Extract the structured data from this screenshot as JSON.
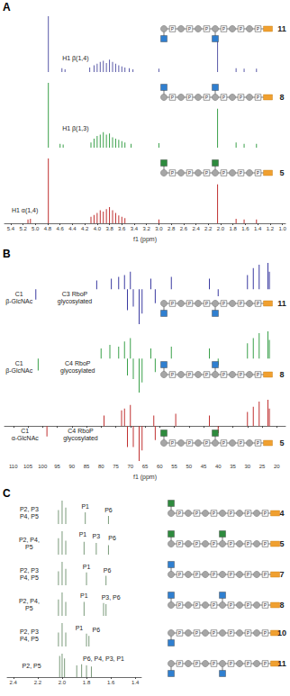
{
  "chart_data": [
    {
      "type": "bar",
      "title": "A",
      "x_label": "f1 (ppm)",
      "grid": false,
      "tick_labels": "x",
      "xlim": [
        0.95,
        5.5
      ],
      "xticks": [
        5.4,
        5.2,
        {
          "value": 5,
          "label": "5.0"
        },
        4.8,
        4.6,
        4.4,
        4.2,
        {
          "value": 4,
          "label": "4.0"
        },
        3.8,
        3.6,
        3.4,
        3.2,
        {
          "value": 3,
          "label": "3.0"
        },
        2.8,
        2.6,
        2.4,
        2.2,
        {
          "value": 2,
          "label": "2.0"
        },
        1.8,
        1.6,
        1.4,
        1.2,
        {
          "value": 1,
          "label": "1.0"
        }
      ],
      "series": [
        {
          "name": "11",
          "color": "#5a5aa8",
          "x": [
            4.79,
            4.57,
            4.52,
            4.12,
            4.05,
            4.0,
            3.95,
            3.9,
            3.85,
            3.8,
            3.75,
            3.7,
            3.65,
            3.6,
            3.55,
            3.48,
            3.42,
            3.0,
            2.05,
            1.75,
            1.62,
            1.42
          ],
          "values": [
            1.0,
            0.07,
            0.05,
            0.08,
            0.12,
            0.15,
            0.18,
            0.2,
            0.16,
            0.22,
            0.18,
            0.15,
            0.12,
            0.1,
            0.08,
            0.07,
            0.05,
            0.06,
            0.55,
            0.07,
            0.06,
            0.06
          ],
          "annotations": [
            {
              "text": "H1 β(1,4)",
              "x": 4.35,
              "y": 0.25
            }
          ],
          "structure": {
            "repeats": 6,
            "phosphate_label": "P",
            "glcnac": [
              {
                "position": 1,
                "side": "below",
                "color": "#2f7fd0"
              },
              {
                "position": 4,
                "side": "below",
                "color": "#2f7fd0"
              }
            ]
          }
        },
        {
          "name": "8",
          "color": "#3aa04a",
          "x": [
            4.79,
            4.6,
            4.55,
            4.1,
            4.05,
            4.0,
            3.95,
            3.9,
            3.85,
            3.8,
            3.75,
            3.7,
            3.65,
            3.6,
            3.55,
            3.45,
            3.0,
            2.05,
            1.75,
            1.62,
            1.42
          ],
          "values": [
            1.0,
            0.06,
            0.05,
            0.08,
            0.14,
            0.18,
            0.2,
            0.24,
            0.2,
            0.22,
            0.16,
            0.14,
            0.12,
            0.1,
            0.08,
            0.06,
            0.07,
            0.6,
            0.08,
            0.06,
            0.06
          ],
          "annotations": [
            {
              "text": "H1 β(1,3)",
              "x": 4.35,
              "y": 0.3
            }
          ],
          "structure": {
            "repeats": 6,
            "phosphate_label": "P",
            "glcnac": [
              {
                "position": 1,
                "side": "above",
                "color": "#2f7fd0"
              },
              {
                "position": 4,
                "side": "above",
                "color": "#2f7fd0"
              }
            ]
          }
        },
        {
          "name": "5",
          "color": "#c03030",
          "x": [
            5.12,
            5.08,
            4.79,
            4.1,
            4.05,
            4.0,
            3.95,
            3.9,
            3.85,
            3.8,
            3.75,
            3.7,
            3.65,
            3.6,
            3.55,
            3.0,
            2.05,
            1.75,
            1.62,
            1.42
          ],
          "values": [
            0.06,
            0.07,
            1.0,
            0.1,
            0.13,
            0.16,
            0.2,
            0.18,
            0.22,
            0.25,
            0.2,
            0.16,
            0.12,
            0.1,
            0.08,
            0.06,
            0.6,
            0.07,
            0.06,
            0.06
          ],
          "annotations": [
            {
              "text": "H1 α(1,4)",
              "x": 5.17,
              "y": 0.2
            }
          ],
          "structure": {
            "repeats": 6,
            "phosphate_label": "P",
            "glcnac": [
              {
                "position": 1,
                "side": "above",
                "color": "#2e8b3e"
              },
              {
                "position": 4,
                "side": "above",
                "color": "#2e8b3e"
              }
            ]
          }
        }
      ]
    },
    {
      "type": "bar",
      "title": "B",
      "x_label": "f1 (ppm)",
      "grid": false,
      "tick_labels": "x",
      "xlim": [
        17,
        113
      ],
      "xticks": [
        110,
        105,
        100,
        95,
        90,
        85,
        80,
        75,
        70,
        65,
        60,
        55,
        50,
        45,
        40,
        35,
        30,
        25,
        20
      ],
      "series": [
        {
          "name": "11",
          "color": "#3a3aa0",
          "x": [
            102.3,
            81.5,
            76.5,
            74,
            72,
            71,
            70,
            69,
            67,
            66,
            63,
            61.5,
            56,
            43,
            40,
            30,
            28,
            26,
            23,
            22.5
          ],
          "values": [
            -0.3,
            0.25,
            0.3,
            0.35,
            0.4,
            -0.6,
            0.5,
            -0.5,
            -1.0,
            -0.7,
            0.3,
            -0.4,
            0.35,
            0.3,
            -0.2,
            0.4,
            0.6,
            0.7,
            0.75,
            0.5
          ],
          "annotations": [
            {
              "text": "C1\nβ-GlcNAc",
              "x": 108,
              "y": -0.25
            },
            {
              "text": "C3 RboP\nglycosylated",
              "x": 89,
              "y": -0.25
            }
          ],
          "structure": {
            "repeats": 6,
            "phosphate_label": "P",
            "glcnac": [
              {
                "position": 1,
                "side": "below",
                "color": "#2f7fd0"
              },
              {
                "position": 4,
                "side": "below",
                "color": "#2f7fd0"
              }
            ]
          }
        },
        {
          "name": "8",
          "color": "#3aa04a",
          "x": [
            101.5,
            80,
            77,
            74,
            72,
            71,
            70,
            69,
            67,
            66,
            63,
            61.5,
            56,
            43,
            40,
            30,
            28,
            26,
            23,
            22.5
          ],
          "values": [
            -0.35,
            0.3,
            0.4,
            0.35,
            0.5,
            -0.5,
            0.6,
            -0.6,
            -1.0,
            -0.7,
            0.3,
            -0.4,
            0.35,
            0.3,
            -0.2,
            0.45,
            0.6,
            0.75,
            0.8,
            0.55
          ],
          "annotations": [
            {
              "text": "C1\nβ-GlcNAc",
              "x": 108,
              "y": -0.25
            },
            {
              "text": "C4 RboP\nglycosylated",
              "x": 88,
              "y": -0.25
            }
          ],
          "structure": {
            "repeats": 6,
            "phosphate_label": "P",
            "glcnac": [
              {
                "position": 1,
                "side": "above",
                "color": "#2f7fd0"
              },
              {
                "position": 4,
                "side": "above",
                "color": "#2f7fd0"
              }
            ]
          }
        },
        {
          "name": "5",
          "color": "#c03030",
          "x": [
            98.5,
            79,
            73,
            72,
            71,
            70,
            69,
            67,
            66,
            62,
            61.5,
            54.5,
            43,
            40,
            30,
            28,
            26,
            23,
            22.5
          ],
          "values": [
            -0.3,
            0.3,
            0.45,
            0.5,
            -0.6,
            0.6,
            -0.6,
            -1.0,
            -0.7,
            0.3,
            -0.4,
            0.35,
            0.3,
            -0.2,
            0.4,
            0.55,
            0.7,
            0.75,
            0.5
          ],
          "annotations": [
            {
              "text": "C1\nα-GlcNAc",
              "x": 106,
              "y": -0.25
            },
            {
              "text": "C4 RboP\nglycosylated",
              "x": 87,
              "y": -0.25
            }
          ],
          "structure": {
            "repeats": 6,
            "phosphate_label": "P",
            "glcnac": [
              {
                "position": 1,
                "side": "above",
                "color": "#2e8b3e"
              },
              {
                "position": 4,
                "side": "above",
                "color": "#2e8b3e"
              }
            ]
          }
        }
      ]
    },
    {
      "type": "bar",
      "title": "C",
      "grid": false,
      "tick_labels": "x",
      "xlim": [
        1.35,
        2.45
      ],
      "xticks": [
        2.4,
        2.2,
        {
          "value": 2,
          "label": "2.0"
        },
        1.8,
        1.6,
        1.4
      ],
      "series": [
        {
          "name": "4",
          "color": "#7a9a7a",
          "x": [
            2.03,
            2.0,
            1.97,
            1.81,
            1.62
          ],
          "values": [
            0.6,
            1.0,
            0.7,
            0.5,
            0.35
          ],
          "annotations": [
            {
              "text": "P2, P3\nP4, P5",
              "x": 2.27,
              "y": 0.5
            },
            {
              "text": "P1",
              "x": 1.81,
              "y": 0.75
            },
            {
              "text": "P6",
              "x": 1.62,
              "y": 0.6
            }
          ],
          "structure": {
            "repeats": 6,
            "phosphate_label": "P",
            "glcnac": [
              {
                "position": 1,
                "side": "above",
                "color": "#2e8b3e"
              }
            ]
          }
        },
        {
          "name": "5",
          "color": "#7a9a7a",
          "x": [
            2.03,
            2.0,
            1.97,
            1.82,
            1.72,
            1.62
          ],
          "values": [
            0.7,
            1.0,
            0.6,
            0.55,
            0.5,
            0.4
          ],
          "annotations": [
            {
              "text": "P2, P4,\nP5",
              "x": 2.27,
              "y": 0.5
            },
            {
              "text": "P1",
              "x": 1.83,
              "y": 0.85
            },
            {
              "text": "P3",
              "x": 1.72,
              "y": 0.8
            },
            {
              "text": "P6",
              "x": 1.59,
              "y": 0.7
            }
          ],
          "structure": {
            "repeats": 6,
            "phosphate_label": "P",
            "glcnac": [
              {
                "position": 1,
                "side": "above",
                "color": "#2e8b3e"
              },
              {
                "position": 4,
                "side": "above",
                "color": "#2e8b3e"
              }
            ]
          }
        },
        {
          "name": "7",
          "color": "#7a9a7a",
          "x": [
            2.03,
            2.0,
            1.97,
            1.8,
            1.64
          ],
          "values": [
            0.6,
            1.0,
            0.7,
            0.55,
            0.4
          ],
          "annotations": [
            {
              "text": "P2, P3\nP4, P5",
              "x": 2.27,
              "y": 0.5
            },
            {
              "text": "P1",
              "x": 1.8,
              "y": 0.8
            },
            {
              "text": "P6",
              "x": 1.63,
              "y": 0.65
            }
          ],
          "structure": {
            "repeats": 6,
            "phosphate_label": "P",
            "glcnac": [
              {
                "position": 1,
                "side": "above",
                "color": "#2f7fd0"
              }
            ]
          }
        },
        {
          "name": "8",
          "color": "#7a9a7a",
          "x": [
            2.03,
            2.0,
            1.97,
            1.82,
            1.66,
            1.64
          ],
          "values": [
            0.7,
            1.0,
            0.6,
            0.6,
            0.55,
            0.5
          ],
          "annotations": [
            {
              "text": "P2, P4,\nP5",
              "x": 2.27,
              "y": 0.5
            },
            {
              "text": "P1",
              "x": 1.82,
              "y": 0.85
            },
            {
              "text": "P3, P6",
              "x": 1.6,
              "y": 0.8
            }
          ],
          "structure": {
            "repeats": 6,
            "phosphate_label": "P",
            "glcnac": [
              {
                "position": 1,
                "side": "above",
                "color": "#2f7fd0"
              },
              {
                "position": 4,
                "side": "above",
                "color": "#2f7fd0"
              }
            ]
          }
        },
        {
          "name": "10",
          "color": "#7a9a7a",
          "x": [
            2.03,
            2.0,
            1.97,
            1.8,
            1.78
          ],
          "values": [
            0.6,
            1.0,
            0.6,
            0.55,
            0.45
          ],
          "annotations": [
            {
              "text": "P2, P3\nP4, P5",
              "x": 2.27,
              "y": 0.5
            },
            {
              "text": "P1",
              "x": 1.86,
              "y": 0.8
            },
            {
              "text": "P6",
              "x": 1.72,
              "y": 0.7
            }
          ],
          "structure": {
            "repeats": 6,
            "phosphate_label": "P",
            "glcnac": [
              {
                "position": 1,
                "side": "below",
                "color": "#2f7fd0"
              }
            ]
          }
        },
        {
          "name": "11",
          "color": "#7a9a7a",
          "x": [
            2.02,
            2.0,
            1.98,
            1.88,
            1.84,
            1.8,
            1.76
          ],
          "values": [
            0.9,
            1.0,
            0.8,
            0.5,
            0.55,
            0.5,
            0.45
          ],
          "annotations": [
            {
              "text": "P2, P5",
              "x": 2.25,
              "y": 0.5
            },
            {
              "text": "P6, P4, P3, P1",
              "x": 1.66,
              "y": 0.8
            }
          ],
          "structure": {
            "repeats": 6,
            "phosphate_label": "P",
            "glcnac": [
              {
                "position": 1,
                "side": "below",
                "color": "#2f7fd0"
              },
              {
                "position": 4,
                "side": "below",
                "color": "#2f7fd0"
              }
            ]
          }
        }
      ]
    }
  ]
}
